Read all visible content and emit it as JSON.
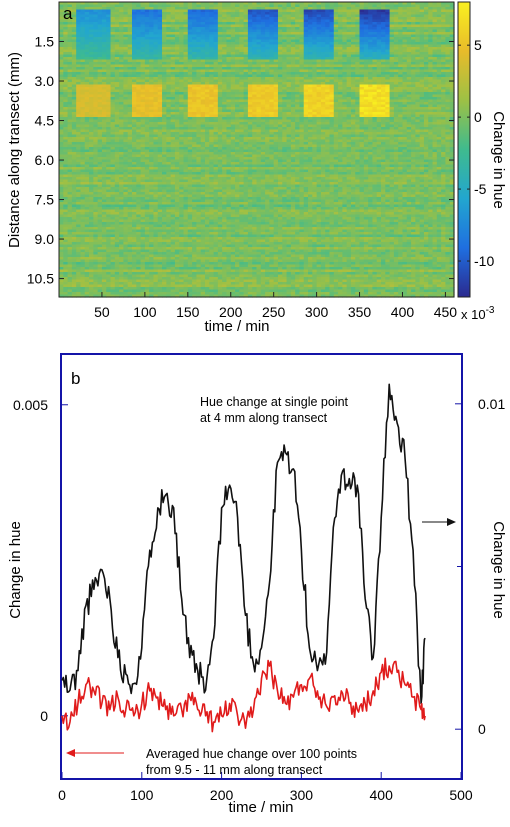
{
  "chart_data": [
    {
      "type": "heatmap",
      "panel_label": "a",
      "xlabel": "time / min",
      "ylabel": "Distance along transect (mm)",
      "x_ticks": [
        50,
        100,
        150,
        200,
        250,
        300,
        350,
        400,
        450
      ],
      "y_ticks": [
        1.5,
        3.0,
        4.5,
        6.0,
        7.5,
        9.0,
        10.5
      ],
      "xlim": [
        0,
        460
      ],
      "ylim_mm": [
        0,
        11.2
      ],
      "y_inverted": true,
      "colorbar": {
        "label": "Change in hue",
        "ticks": [
          5,
          0,
          -5,
          -10
        ],
        "exponent": "x 10",
        "exponent_power": "-3",
        "range": [
          -12.5,
          8
        ],
        "colors": [
          "#2b2a8f",
          "#1f6fe0",
          "#22a6cf",
          "#3fbb8e",
          "#9dc045",
          "#e8bc2a",
          "#f9f020"
        ]
      },
      "background_range": [
        -1.5,
        1.5
      ],
      "pulses": [
        {
          "start": 22,
          "end": 58,
          "top_band": -7,
          "bottom_band": 4
        },
        {
          "start": 85,
          "end": 120,
          "top_band": -9,
          "bottom_band": 5
        },
        {
          "start": 150,
          "end": 183,
          "top_band": -9.5,
          "bottom_band": 5.5
        },
        {
          "start": 218,
          "end": 253,
          "top_band": -10.5,
          "bottom_band": 6
        },
        {
          "start": 283,
          "end": 318,
          "top_band": -11,
          "bottom_band": 6.5
        },
        {
          "start": 350,
          "end": 385,
          "top_band": -12,
          "bottom_band": 7.5
        }
      ],
      "top_band_mm": [
        0.3,
        2.2
      ],
      "bottom_band_mm": [
        3.1,
        4.4
      ]
    },
    {
      "type": "line",
      "panel_label": "b",
      "xlabel": "time / min",
      "ylabel_left": "Change in hue",
      "ylabel_right": "Change in hue",
      "x_ticks": [
        0,
        100,
        200,
        300,
        400,
        500
      ],
      "xlim": [
        0,
        500
      ],
      "left_ticks": [
        "0.005",
        "0"
      ],
      "left_tick_values": [
        0.005,
        0
      ],
      "left_ylim": [
        -0.001,
        0.0058
      ],
      "right_ticks": [
        "0.01",
        "0"
      ],
      "right_tick_values": [
        0.01,
        0
      ],
      "right_ylim": [
        -0.0015,
        0.0115
      ],
      "series": [
        {
          "axis": "right",
          "color": "#111111",
          "annotation": [
            "Hue change at single point",
            "at 4 mm along transect"
          ],
          "x": [
            0,
            10,
            20,
            30,
            40,
            50,
            60,
            70,
            80,
            90,
            100,
            110,
            120,
            130,
            140,
            150,
            160,
            170,
            180,
            190,
            200,
            210,
            220,
            230,
            240,
            250,
            260,
            270,
            280,
            290,
            300,
            310,
            320,
            330,
            340,
            350,
            360,
            370,
            380,
            390,
            400,
            410,
            420,
            430,
            440,
            450,
            455
          ],
          "y": [
            0.0015,
            0.0012,
            0.0018,
            0.0038,
            0.0043,
            0.0049,
            0.004,
            0.0022,
            0.0017,
            0.0014,
            0.0025,
            0.0055,
            0.0068,
            0.0072,
            0.0068,
            0.004,
            0.0022,
            0.0018,
            0.0012,
            0.0028,
            0.0068,
            0.0075,
            0.0065,
            0.0035,
            0.002,
            0.0025,
            0.0045,
            0.0082,
            0.0085,
            0.008,
            0.0055,
            0.0025,
            0.0018,
            0.002,
            0.0062,
            0.0078,
            0.0077,
            0.0075,
            0.004,
            0.0022,
            0.0065,
            0.0106,
            0.0094,
            0.0083,
            0.0055,
            0.0008,
            0.0028
          ]
        },
        {
          "axis": "left",
          "color": "#e01b1b",
          "annotation": [
            "Averaged hue change over 100 points",
            "from 9.5 - 11 mm along transect"
          ],
          "x": [
            0,
            10,
            20,
            30,
            40,
            50,
            60,
            70,
            80,
            90,
            100,
            110,
            120,
            130,
            140,
            150,
            160,
            170,
            180,
            190,
            200,
            210,
            220,
            230,
            240,
            250,
            260,
            270,
            280,
            290,
            300,
            310,
            320,
            330,
            340,
            350,
            360,
            370,
            380,
            390,
            400,
            410,
            420,
            430,
            440,
            450,
            455
          ],
          "y": [
            0.0,
            -0.0001,
            0.0002,
            0.0005,
            0.0004,
            0.0002,
            0.0001,
            0.0003,
            0.0001,
            0.0,
            0.0002,
            0.0004,
            0.0003,
            0.0001,
            0.0,
            0.0001,
            0.0003,
            0.0001,
            0.0,
            -0.0001,
            0.0,
            0.0002,
            0.0,
            -0.0002,
            0.0001,
            0.0006,
            0.0008,
            0.0004,
            0.0002,
            0.0003,
            0.0005,
            0.0006,
            0.0004,
            0.0002,
            0.0003,
            0.0004,
            0.0002,
            0.0001,
            0.0002,
            0.0004,
            0.0007,
            0.0008,
            0.0007,
            0.0005,
            0.0003,
            0.0001,
            0.0
          ]
        }
      ]
    }
  ]
}
